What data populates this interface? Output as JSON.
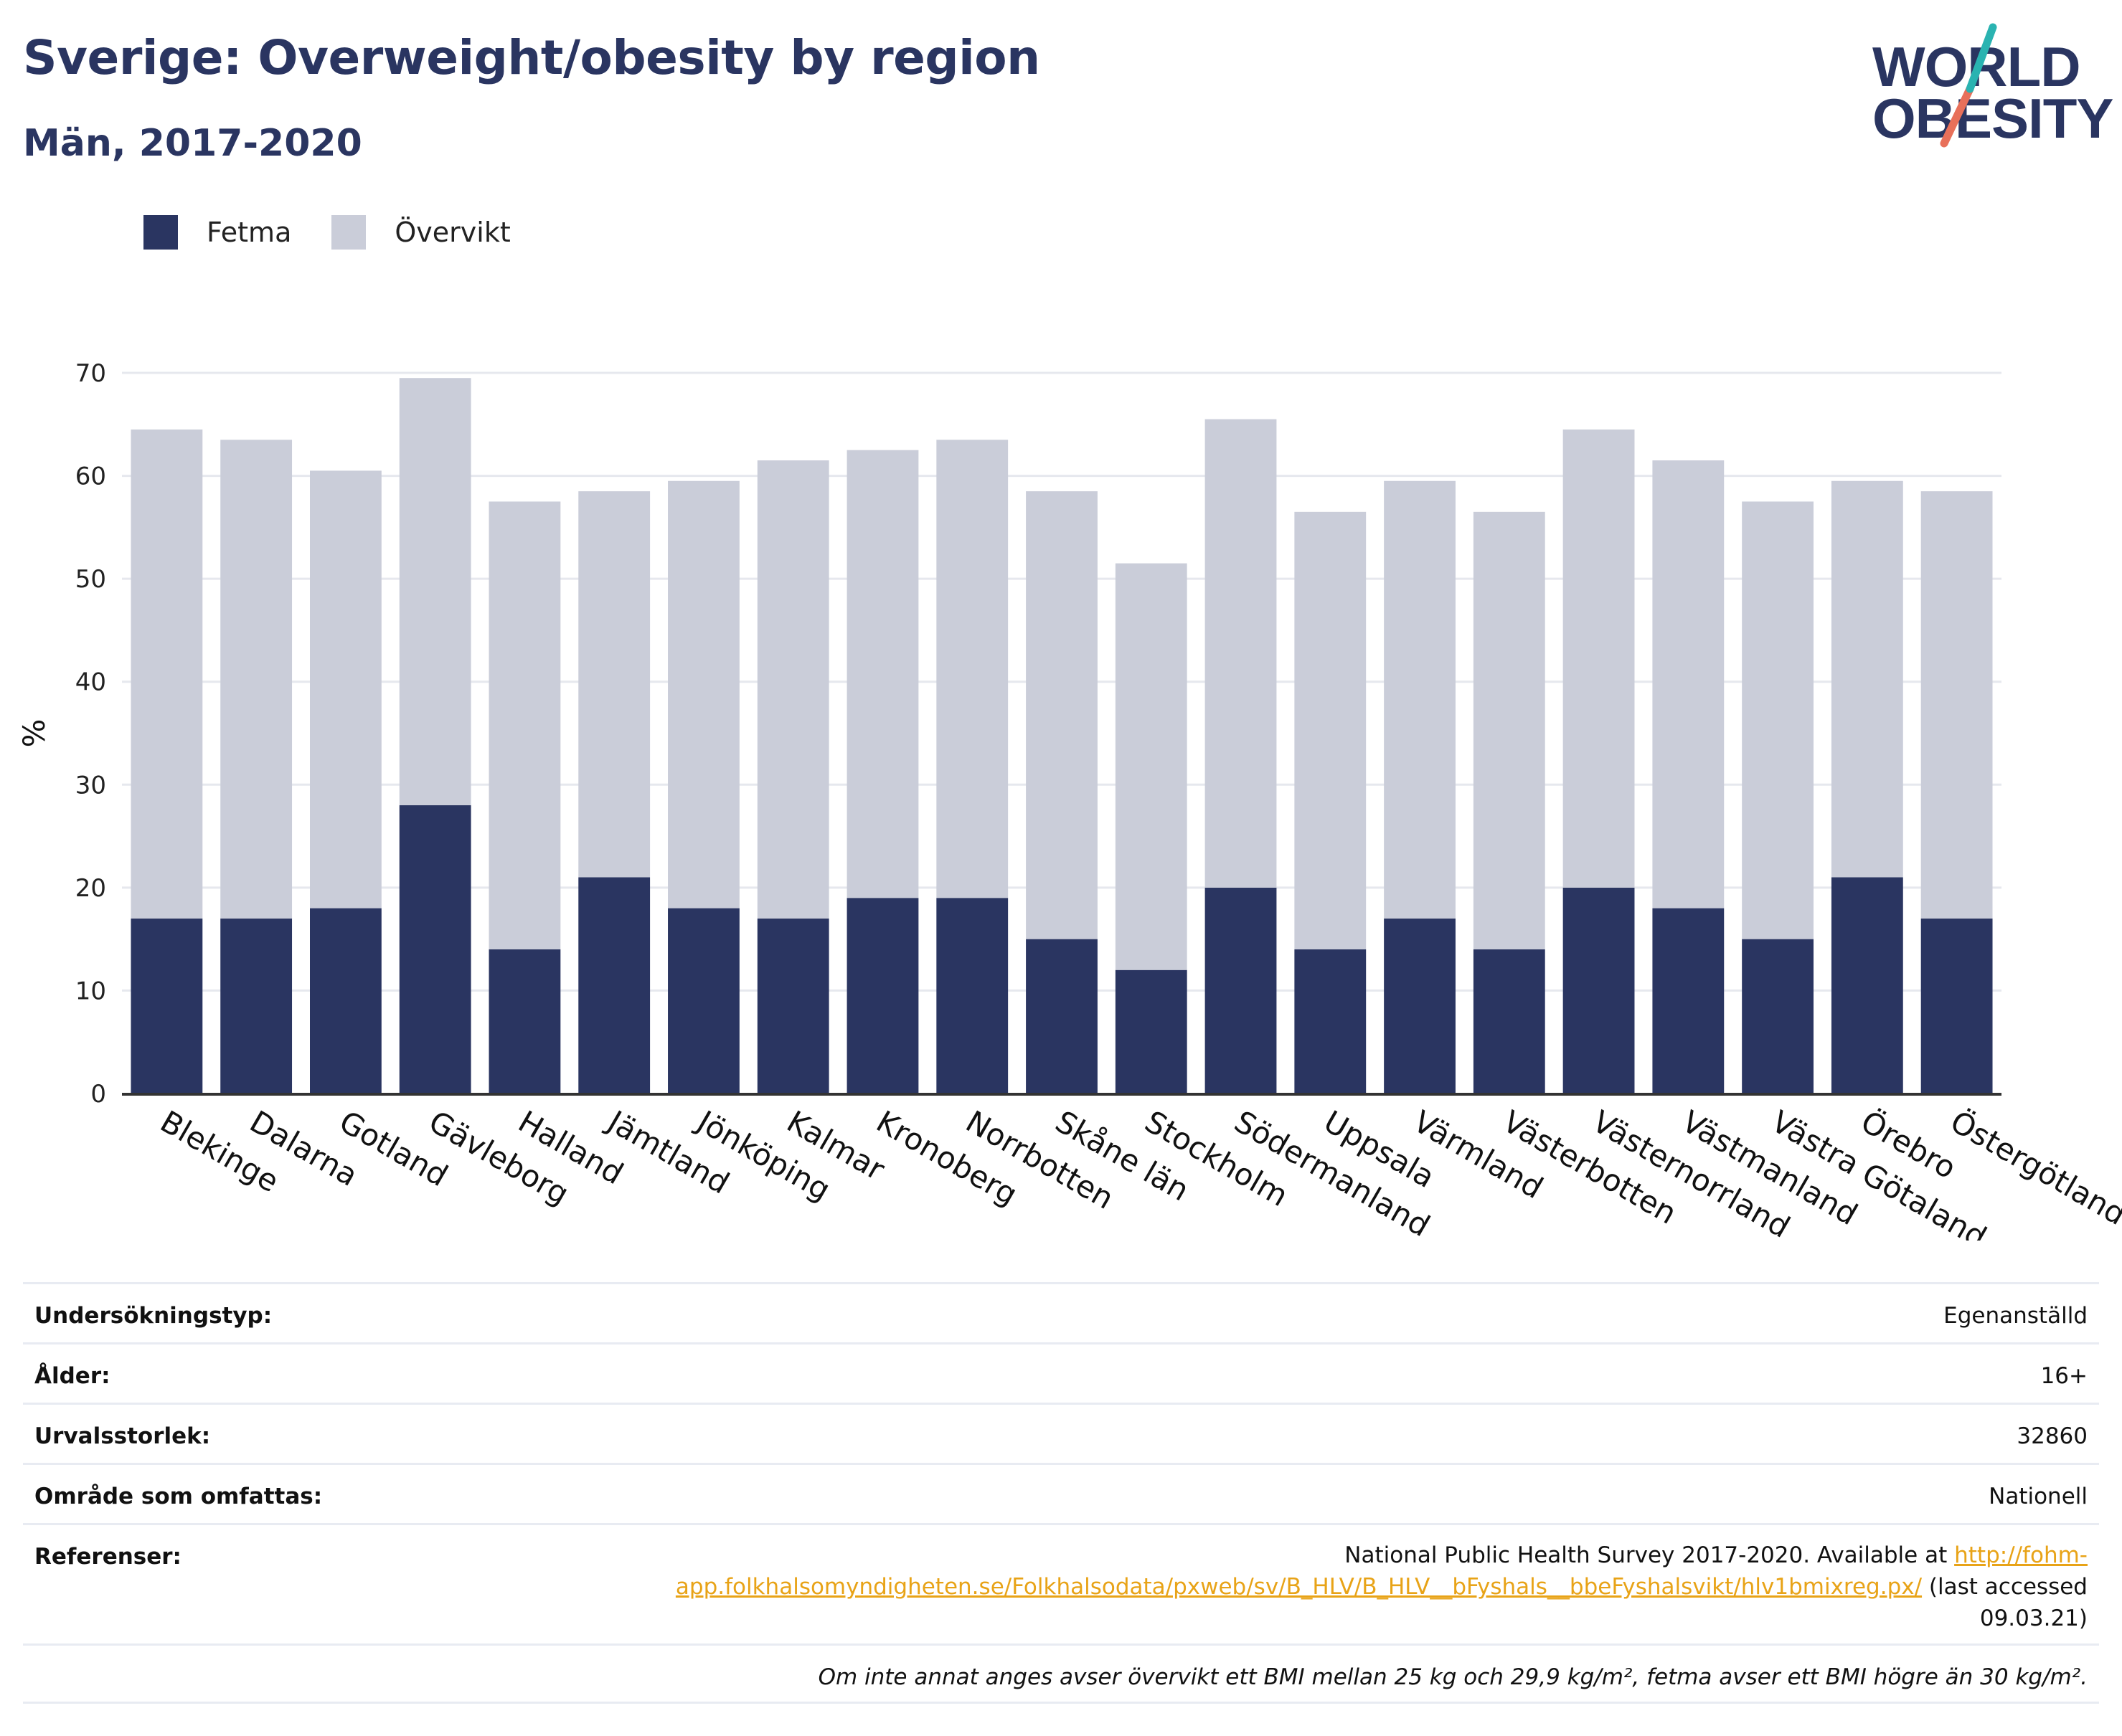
{
  "header": {
    "title": "Sverige: Overweight/obesity by region",
    "subtitle": "Män, 2017-2020"
  },
  "logo": {
    "line1": "WORLD",
    "line2": "OBESITY"
  },
  "colors": {
    "fetma": "#2a3561",
    "overvikt": "#cacdd9",
    "accent_teal": "#2ab3b1",
    "accent_coral": "#e8705a",
    "link": "#e8a317"
  },
  "chart_data": {
    "type": "bar",
    "stacked": true,
    "ylabel": "%",
    "ylim": [
      0,
      70
    ],
    "yticks": [
      0,
      10,
      20,
      30,
      40,
      50,
      60,
      70
    ],
    "grid": true,
    "legend_position": "top-left",
    "categories": [
      "Blekinge",
      "Dalarna",
      "Gotland",
      "Gävleborg",
      "Halland",
      "Jämtland",
      "Jönköping",
      "Kalmar",
      "Kronoberg",
      "Norrbotten",
      "Skåne län",
      "Stockholm",
      "Södermanland",
      "Uppsala",
      "Värmland",
      "Västerbotten",
      "Västernorrland",
      "Västmanland",
      "Västra Götaland",
      "Örebro",
      "Östergötland"
    ],
    "series": [
      {
        "name": "Fetma",
        "values": [
          17,
          17,
          18,
          28,
          14,
          21,
          18,
          17,
          19,
          19,
          15,
          12,
          20,
          14,
          17,
          14,
          20,
          18,
          15,
          21,
          17
        ]
      },
      {
        "name": "Övervikt",
        "values": [
          47.5,
          46.5,
          42.5,
          41.5,
          43.5,
          37.5,
          41.5,
          44.5,
          43.5,
          44.5,
          43.5,
          39.5,
          45.5,
          42.5,
          42.5,
          42.5,
          44.5,
          43.5,
          42.5,
          38.5,
          41.5
        ]
      }
    ]
  },
  "info": {
    "survey_type": {
      "label": "Undersökningstyp:",
      "value": "Egenanställd"
    },
    "age": {
      "label": "Ålder:",
      "value": "16+"
    },
    "sample_size": {
      "label": "Urvalsstorlek:",
      "value": "32860"
    },
    "coverage": {
      "label": "Område som omfattas:",
      "value": "Nationell"
    },
    "references": {
      "label": "Referenser:",
      "text_before": "National Public Health Survey 2017-2020. Available at ",
      "link": "http://fohm-app.folkhalsomyndigheten.se/Folkhalsodata/pxweb/sv/B_HLV/B_HLV__bFyshals__bbeFyshalsvikt/hlv1bmixreg.px/",
      "text_after": " (last accessed 09.03.21)"
    },
    "note": "Om inte annat anges avser övervikt ett BMI mellan 25 kg och 29,9 kg/m², fetma avser ett BMI högre än 30 kg/m²."
  }
}
